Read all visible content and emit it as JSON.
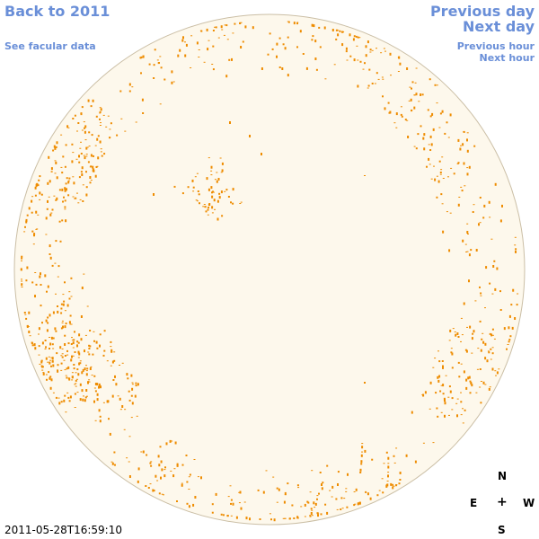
{
  "nav": {
    "back_label": "Back to 2011",
    "facular_label": "See facular data",
    "prev_day_label": "Previous day",
    "next_day_label": "Next day",
    "prev_hour_label": "Previous hour",
    "next_hour_label": "Next hour"
  },
  "compass": {
    "north": "N",
    "east": "E",
    "west": "W",
    "south": "S",
    "center": "+"
  },
  "timestamp": "2011-05-28T16:59:10",
  "colors": {
    "link": "#6a8fd8",
    "disk_fill": "#fdf8ec",
    "disk_edge": "#cbbfa6",
    "spot": "#ee8c00"
  }
}
